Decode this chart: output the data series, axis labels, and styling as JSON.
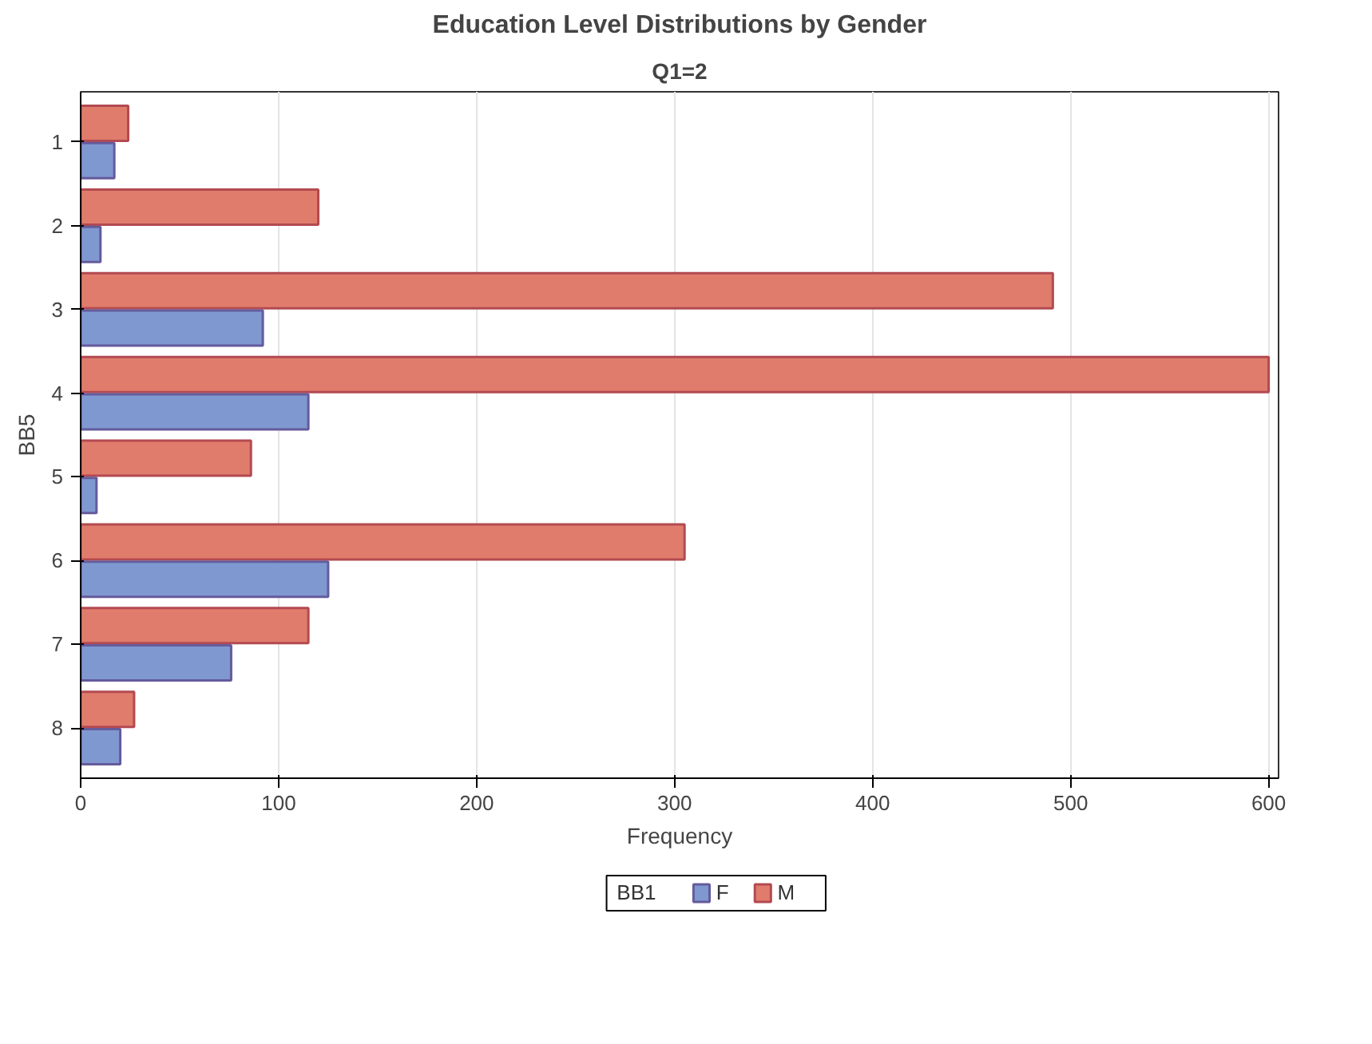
{
  "chart_data": {
    "type": "bar",
    "orientation": "horizontal",
    "title": "Education Level Distributions by Gender",
    "subtitle": "Q1=2",
    "xlabel": "Frequency",
    "ylabel": "BB5",
    "legend_title": "BB1",
    "categories": [
      "1",
      "2",
      "3",
      "4",
      "5",
      "6",
      "7",
      "8"
    ],
    "series": [
      {
        "name": "F",
        "color": "#7f98d0",
        "values": [
          17,
          10,
          92,
          115,
          8,
          125,
          76,
          20
        ]
      },
      {
        "name": "M",
        "color": "#e07c6c",
        "values": [
          24,
          120,
          491,
          600,
          86,
          305,
          115,
          27
        ]
      }
    ],
    "xlim": [
      0,
      605
    ],
    "xticks": [
      0,
      100,
      200,
      300,
      400,
      500,
      600
    ],
    "grid": "x",
    "legend": "bottom"
  }
}
